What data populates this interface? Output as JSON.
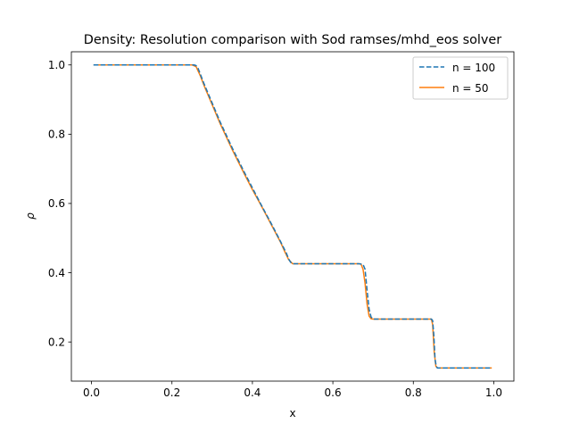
{
  "chart_data": {
    "type": "line",
    "title": "Density: Resolution comparison with Sod ramses/mhd_eos solver",
    "xlabel": "x",
    "ylabel": "ρ",
    "xlim": [
      -0.05,
      1.05
    ],
    "ylim": [
      0.087,
      1.038
    ],
    "x_ticks": [
      0.0,
      0.2,
      0.4,
      0.6,
      0.8,
      1.0
    ],
    "x_tick_labels": [
      "0.0",
      "0.2",
      "0.4",
      "0.6",
      "0.8",
      "1.0"
    ],
    "y_ticks": [
      0.2,
      0.4,
      0.6,
      0.8,
      1.0
    ],
    "y_tick_labels": [
      "0.2",
      "0.4",
      "0.6",
      "0.8",
      "1.0"
    ],
    "grid": false,
    "legend_position": "top-right",
    "series": [
      {
        "name": "n = 100",
        "color": "#1f77b4",
        "style": "dashed",
        "x": [
          0.005,
          0.25,
          0.255,
          0.26,
          0.265,
          0.27,
          0.28,
          0.3,
          0.32,
          0.35,
          0.38,
          0.4,
          0.42,
          0.45,
          0.47,
          0.485,
          0.49,
          0.495,
          0.5,
          0.55,
          0.6,
          0.65,
          0.665,
          0.675,
          0.68,
          0.685,
          0.69,
          0.695,
          0.7,
          0.75,
          0.8,
          0.845,
          0.848,
          0.851,
          0.854,
          0.857,
          0.86,
          0.9,
          0.95,
          0.995
        ],
        "y": [
          1.0,
          1.0,
          1.0,
          0.998,
          0.99,
          0.975,
          0.945,
          0.89,
          0.835,
          0.76,
          0.69,
          0.645,
          0.6,
          0.535,
          0.49,
          0.455,
          0.44,
          0.43,
          0.426,
          0.426,
          0.426,
          0.426,
          0.426,
          0.424,
          0.41,
          0.35,
          0.295,
          0.272,
          0.266,
          0.266,
          0.266,
          0.266,
          0.262,
          0.22,
          0.15,
          0.13,
          0.125,
          0.125,
          0.125,
          0.125
        ]
      },
      {
        "name": "n = 50",
        "color": "#ff7f0e",
        "style": "solid",
        "x": [
          0.005,
          0.25,
          0.26,
          0.27,
          0.28,
          0.3,
          0.32,
          0.35,
          0.38,
          0.4,
          0.42,
          0.45,
          0.47,
          0.48,
          0.49,
          0.5,
          0.55,
          0.6,
          0.65,
          0.665,
          0.67,
          0.675,
          0.68,
          0.685,
          0.69,
          0.695,
          0.7,
          0.75,
          0.8,
          0.845,
          0.848,
          0.852,
          0.856,
          0.86,
          0.9,
          0.95,
          0.995
        ],
        "y": [
          1.0,
          1.0,
          0.995,
          0.97,
          0.94,
          0.885,
          0.83,
          0.755,
          0.685,
          0.64,
          0.598,
          0.532,
          0.488,
          0.462,
          0.438,
          0.426,
          0.426,
          0.426,
          0.426,
          0.426,
          0.425,
          0.41,
          0.37,
          0.31,
          0.275,
          0.267,
          0.266,
          0.266,
          0.266,
          0.266,
          0.25,
          0.17,
          0.13,
          0.125,
          0.125,
          0.125,
          0.125
        ]
      }
    ]
  }
}
